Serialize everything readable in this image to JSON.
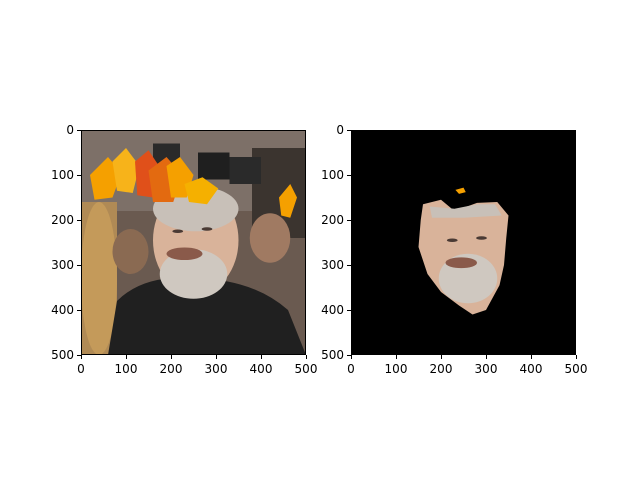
{
  "panels": [
    {
      "id": "original",
      "xticks": [
        "0",
        "100",
        "200",
        "300",
        "400",
        "500"
      ],
      "yticks": [
        "0",
        "100",
        "200",
        "300",
        "400",
        "500"
      ]
    },
    {
      "id": "masked",
      "xticks": [
        "0",
        "100",
        "200",
        "300",
        "400",
        "500"
      ],
      "yticks": [
        "0",
        "100",
        "200",
        "300",
        "400",
        "500"
      ]
    }
  ],
  "colors": {
    "mask_background": "#000000",
    "leaf_orange": "#f5a000",
    "leaf_red": "#e0501a",
    "skin": "#d9b39a",
    "beard": "#cfc8c0",
    "jacket": "#202020",
    "crowd": "#5a4a40"
  }
}
